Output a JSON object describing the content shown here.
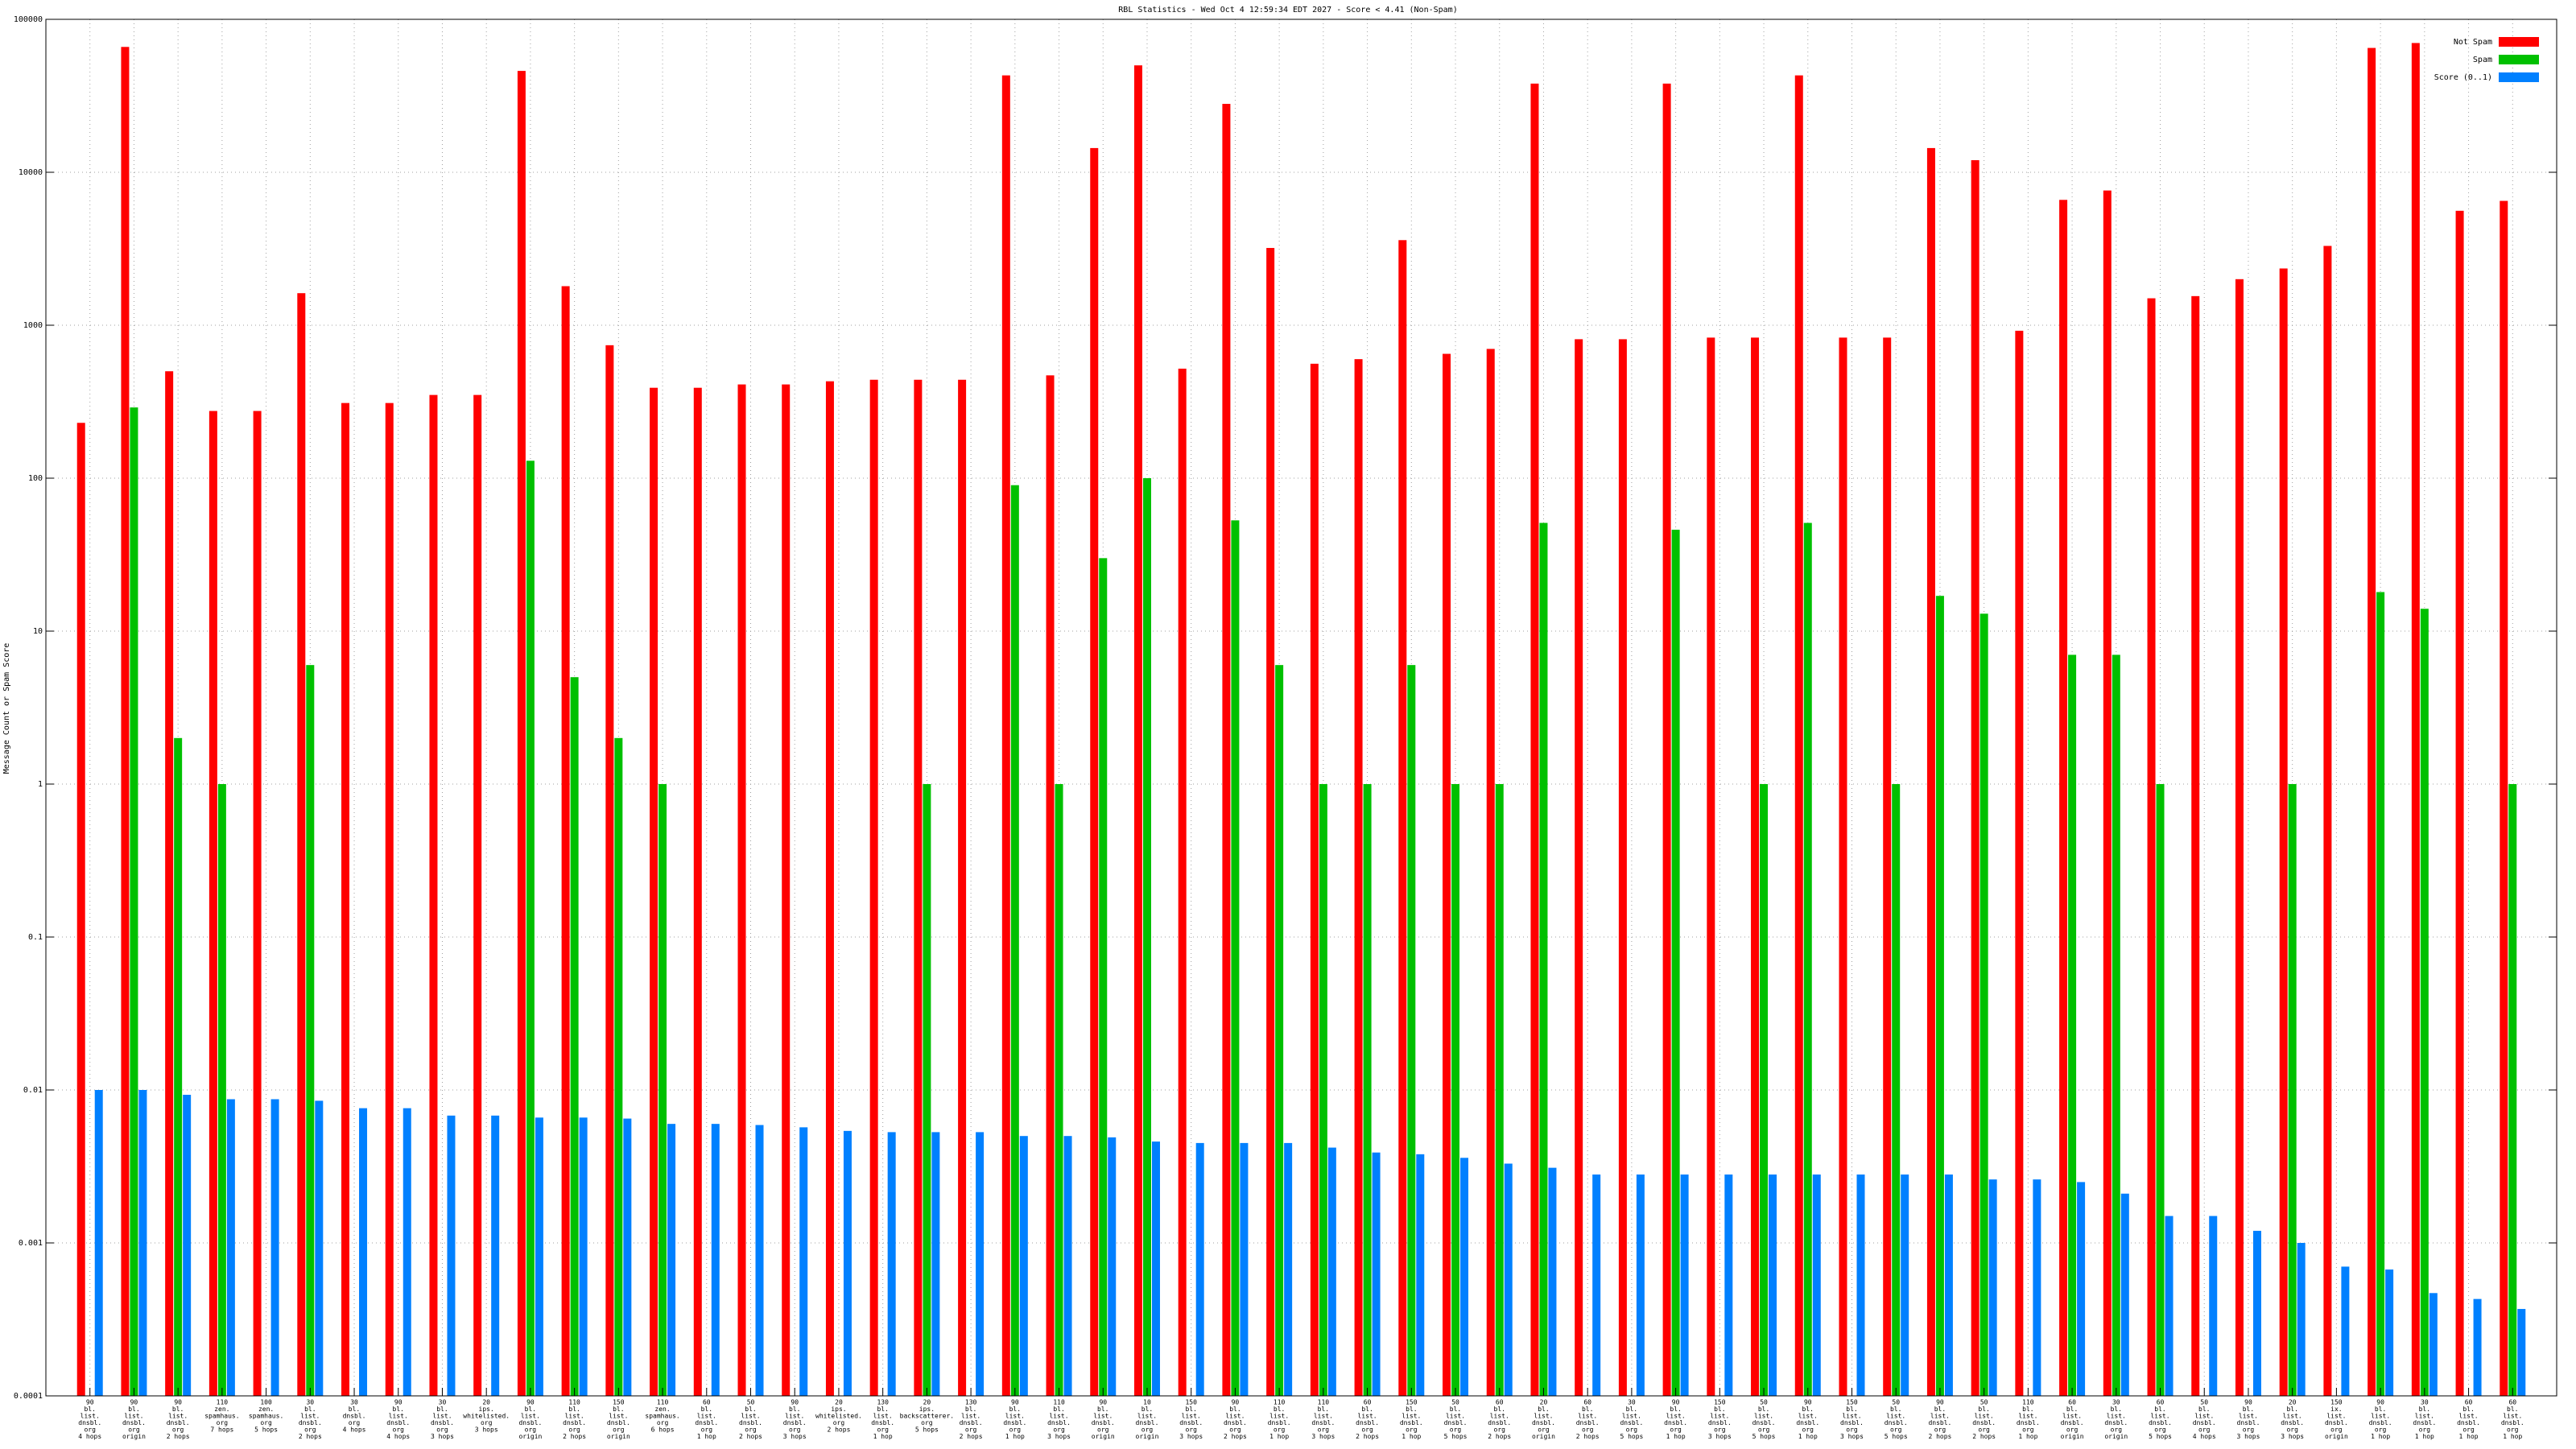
{
  "chart_data": {
    "type": "bar",
    "title": "RBL Statistics - Wed Oct  4 12:59:34 EDT 2027 - Score < 4.41 (Non-Spam)",
    "y_label": "Message Count or Spam Score",
    "log_y": true,
    "grid": true,
    "legend": "top-right",
    "ylim": [
      0.0001,
      100000
    ],
    "yticks": [
      0.0001,
      0.001,
      0.01,
      0.1,
      1,
      10,
      100,
      1000,
      10000,
      100000
    ],
    "categories": [
      [
        "90",
        "bl.",
        "list.",
        "dnsbl.",
        "org",
        "4 hops"
      ],
      [
        "90",
        "bl.",
        "list.",
        "dnsbl.",
        "org",
        "origin"
      ],
      [
        "90",
        "bl.",
        "list.",
        "dnsbl.",
        "org",
        "2 hops"
      ],
      [
        "110",
        "zen.",
        "spamhaus.",
        "org",
        "7 hops"
      ],
      [
        "100",
        "zen.",
        "spamhaus.",
        "org",
        "5 hops"
      ],
      [
        "30",
        "bl.",
        "list.",
        "dnsbl.",
        "org",
        "2 hops"
      ],
      [
        "30",
        "bl.",
        "dnsbl.",
        "org",
        "4 hops"
      ],
      [
        "90",
        "bl.",
        "list.",
        "dnsbl.",
        "org",
        "4 hops"
      ],
      [
        "30",
        "bl.",
        "list.",
        "dnsbl.",
        "org",
        "3 hops"
      ],
      [
        "20",
        "ips.",
        "whitelisted.",
        "org",
        "3 hops"
      ],
      [
        "90",
        "bl.",
        "list.",
        "dnsbl.",
        "org",
        "origin"
      ],
      [
        "110",
        "bl.",
        "list.",
        "dnsbl.",
        "org",
        "2 hops"
      ],
      [
        "150",
        "bl.",
        "list.",
        "dnsbl.",
        "org",
        "origin"
      ],
      [
        "110",
        "zen.",
        "spamhaus.",
        "org",
        "6 hops"
      ],
      [
        "60",
        "bl.",
        "list.",
        "dnsbl.",
        "org",
        "1 hop"
      ],
      [
        "50",
        "bl.",
        "list.",
        "dnsbl.",
        "org",
        "2 hops"
      ],
      [
        "90",
        "bl.",
        "list.",
        "dnsbl.",
        "org",
        "3 hops"
      ],
      [
        "20",
        "ips.",
        "whitelisted.",
        "org",
        "2 hops"
      ],
      [
        "130",
        "bl.",
        "list.",
        "dnsbl.",
        "org",
        "1 hop"
      ],
      [
        "20",
        "ips.",
        "backscatterer.",
        "org",
        "5 hops"
      ],
      [
        "130",
        "bl.",
        "list.",
        "dnsbl.",
        "org",
        "2 hops"
      ],
      [
        "90",
        "bl.",
        "list.",
        "dnsbl.",
        "org",
        "1 hop"
      ],
      [
        "110",
        "bl.",
        "list.",
        "dnsbl.",
        "org",
        "3 hops"
      ],
      [
        "90",
        "bl.",
        "list.",
        "dnsbl.",
        "org",
        "origin"
      ],
      [
        "10",
        "bl.",
        "list.",
        "dnsbl.",
        "org",
        "origin"
      ],
      [
        "150",
        "bl.",
        "list.",
        "dnsbl.",
        "org",
        "3 hops"
      ],
      [
        "90",
        "bl.",
        "list.",
        "dnsbl.",
        "org",
        "2 hops"
      ],
      [
        "110",
        "bl.",
        "list.",
        "dnsbl.",
        "org",
        "1 hop"
      ],
      [
        "110",
        "bl.",
        "list.",
        "dnsbl.",
        "org",
        "3 hops"
      ],
      [
        "60",
        "bl.",
        "list.",
        "dnsbl.",
        "org",
        "2 hops"
      ],
      [
        "150",
        "bl.",
        "list.",
        "dnsbl.",
        "org",
        "1 hop"
      ],
      [
        "50",
        "bl.",
        "list.",
        "dnsbl.",
        "org",
        "5 hops"
      ],
      [
        "60",
        "bl.",
        "list.",
        "dnsbl.",
        "org",
        "2 hops"
      ],
      [
        "20",
        "bl.",
        "list.",
        "dnsbl.",
        "org",
        "origin"
      ],
      [
        "60",
        "bl.",
        "list.",
        "dnsbl.",
        "org",
        "2 hops"
      ],
      [
        "30",
        "bl.",
        "list.",
        "dnsbl.",
        "org",
        "5 hops"
      ],
      [
        "90",
        "bl.",
        "list.",
        "dnsbl.",
        "org",
        "1 hop"
      ],
      [
        "150",
        "bl.",
        "list.",
        "dnsbl.",
        "org",
        "3 hops"
      ],
      [
        "50",
        "bl.",
        "list.",
        "dnsbl.",
        "org",
        "5 hops"
      ],
      [
        "90",
        "bl.",
        "list.",
        "dnsbl.",
        "org",
        "1 hop"
      ],
      [
        "150",
        "bl.",
        "list.",
        "dnsbl.",
        "org",
        "3 hops"
      ],
      [
        "50",
        "bl.",
        "list.",
        "dnsbl.",
        "org",
        "5 hops"
      ],
      [
        "90",
        "bl.",
        "list.",
        "dnsbl.",
        "org",
        "2 hops"
      ],
      [
        "50",
        "bl.",
        "list.",
        "dnsbl.",
        "org",
        "2 hops"
      ],
      [
        "110",
        "bl.",
        "list.",
        "dnsbl.",
        "org",
        "1 hop"
      ],
      [
        "60",
        "bl.",
        "list.",
        "dnsbl.",
        "org",
        "origin"
      ],
      [
        "30",
        "bl.",
        "list.",
        "dnsbl.",
        "org",
        "origin"
      ],
      [
        "60",
        "bl.",
        "list.",
        "dnsbl.",
        "org",
        "5 hops"
      ],
      [
        "50",
        "bl.",
        "list.",
        "dnsbl.",
        "org",
        "4 hops"
      ],
      [
        "90",
        "bl.",
        "list.",
        "dnsbl.",
        "org",
        "3 hops"
      ],
      [
        "20",
        "bl.",
        "list.",
        "dnsbl.",
        "org",
        "3 hops"
      ],
      [
        "150",
        "ix.",
        "list.",
        "dnsbl.",
        "org",
        "origin"
      ],
      [
        "90",
        "bl.",
        "list.",
        "dnsbl.",
        "org",
        "1 hop"
      ],
      [
        "30",
        "bl.",
        "list.",
        "dnsbl.",
        "org",
        "1 hop"
      ],
      [
        "60",
        "bl.",
        "list.",
        "dnsbl.",
        "org",
        "1 hop"
      ],
      [
        "60",
        "bl.",
        "list.",
        "dnsbl.",
        "org",
        "1 hop"
      ]
    ],
    "series": [
      {
        "name": "Not Spam",
        "color": "#ff0000",
        "values": [
          230,
          66000,
          500,
          275,
          275,
          1620,
          310,
          310,
          350,
          350,
          46000,
          1800,
          740,
          390,
          390,
          410,
          410,
          430,
          440,
          440,
          440,
          43000,
          470,
          14400,
          50000,
          520,
          28000,
          3200,
          560,
          600,
          3600,
          650,
          700,
          38000,
          810,
          810,
          38000,
          830,
          830,
          43000,
          830,
          830,
          14400,
          12000,
          920,
          6600,
          7600,
          1500,
          1550,
          2000,
          2350,
          3300,
          65000,
          70000,
          5600,
          6500
        ]
      },
      {
        "name": "Spam",
        "color": "#00c000",
        "values": [
          null,
          290,
          2,
          1,
          null,
          6,
          null,
          null,
          null,
          null,
          130,
          5,
          2,
          1,
          null,
          null,
          null,
          null,
          null,
          1,
          null,
          90,
          1,
          30,
          100,
          null,
          53,
          6,
          1,
          1,
          6,
          1,
          1,
          51,
          null,
          null,
          46,
          null,
          1,
          51,
          null,
          1,
          17,
          13,
          null,
          7,
          7,
          1,
          null,
          null,
          1,
          null,
          18,
          14,
          null,
          1
        ]
      },
      {
        "name": "Score (0..1)",
        "color": "#0080ff",
        "values": [
          0.01,
          0.01,
          0.0093,
          0.0087,
          0.0087,
          0.0085,
          0.0076,
          0.0076,
          0.0068,
          0.0068,
          0.0066,
          0.0066,
          0.0065,
          0.006,
          0.006,
          0.0059,
          0.0057,
          0.0054,
          0.0053,
          0.0053,
          0.0053,
          0.005,
          0.005,
          0.0049,
          0.0046,
          0.0045,
          0.0045,
          0.0045,
          0.0042,
          0.0039,
          0.0038,
          0.0036,
          0.0033,
          0.0031,
          0.0028,
          0.0028,
          0.0028,
          0.0028,
          0.0028,
          0.0028,
          0.0028,
          0.0028,
          0.0028,
          0.0026,
          0.0026,
          0.0025,
          0.0021,
          0.0015,
          0.0015,
          0.0012,
          0.001,
          0.0007,
          0.00067,
          0.00047,
          0.00043,
          0.00037
        ]
      }
    ]
  }
}
